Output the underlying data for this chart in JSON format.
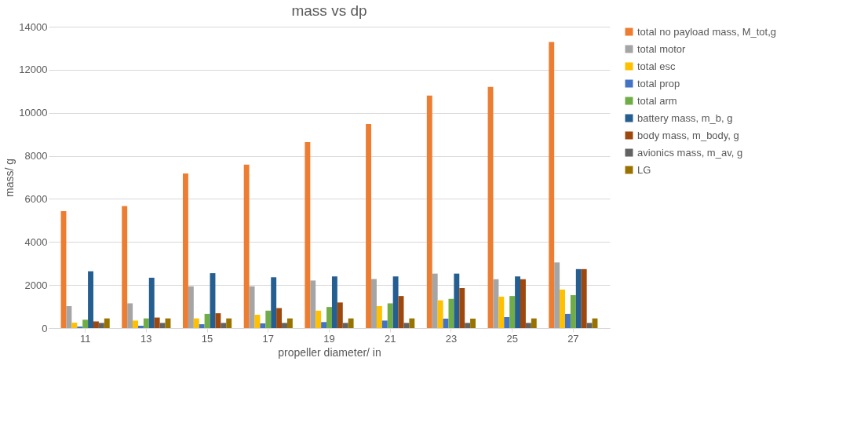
{
  "chart_data": {
    "type": "bar",
    "title": "mass vs dp",
    "xlabel": "propeller diameter/ in",
    "ylabel": "mass/ g",
    "categories": [
      "11",
      "13",
      "15",
      "17",
      "19",
      "21",
      "23",
      "25",
      "27"
    ],
    "series": [
      {
        "name": "total no payload mass, M_tot,g",
        "color": "#ed7d31",
        "values": [
          5430,
          5670,
          7180,
          7590,
          8640,
          9480,
          10800,
          11200,
          13290
        ]
      },
      {
        "name": "total motor",
        "color": "#a5a5a5",
        "values": [
          1020,
          1150,
          1940,
          1940,
          2210,
          2280,
          2530,
          2270,
          3050
        ]
      },
      {
        "name": "total esc",
        "color": "#ffc000",
        "values": [
          250,
          350,
          450,
          620,
          810,
          1020,
          1290,
          1460,
          1790
        ]
      },
      {
        "name": "total prop",
        "color": "#4472c4",
        "values": [
          70,
          110,
          180,
          220,
          280,
          350,
          440,
          510,
          660
        ]
      },
      {
        "name": "total arm",
        "color": "#70ad47",
        "values": [
          390,
          450,
          660,
          810,
          980,
          1150,
          1360,
          1490,
          1530
        ]
      },
      {
        "name": "battery mass, m_b, g",
        "color": "#255e91",
        "values": [
          2640,
          2340,
          2550,
          2360,
          2400,
          2400,
          2530,
          2400,
          2740
        ]
      },
      {
        "name": "body mass, m_body, g",
        "color": "#9e480e",
        "values": [
          310,
          490,
          690,
          930,
          1190,
          1490,
          1860,
          2270,
          2740
        ]
      },
      {
        "name": "avionics mass, m_av, g",
        "color": "#636363",
        "values": [
          240,
          240,
          240,
          240,
          240,
          240,
          240,
          240,
          240
        ]
      },
      {
        "name": "LG",
        "color": "#997300",
        "values": [
          450,
          450,
          450,
          450,
          450,
          450,
          440,
          450,
          450
        ]
      }
    ],
    "ylim": [
      0,
      14000
    ],
    "yticks": [
      0,
      2000,
      4000,
      6000,
      8000,
      10000,
      12000,
      14000
    ],
    "grid": "y",
    "legend": "right"
  }
}
